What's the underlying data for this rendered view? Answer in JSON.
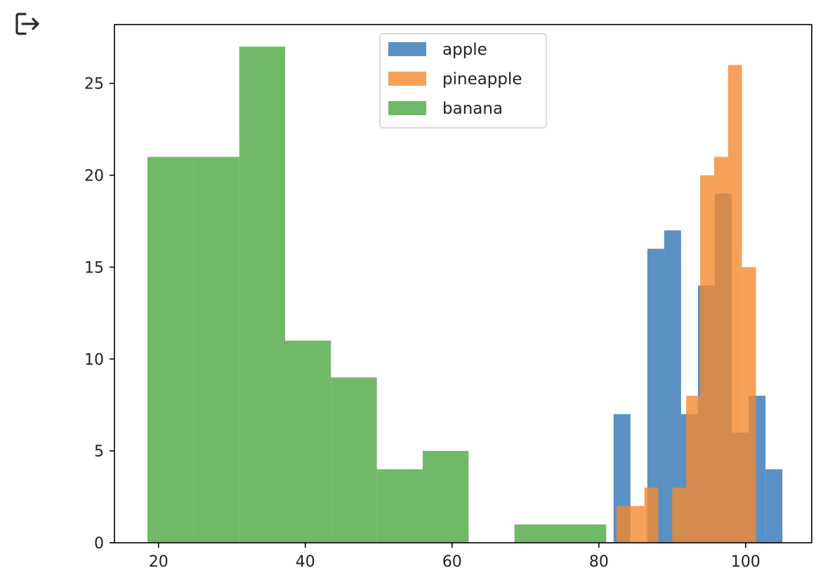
{
  "toolbar": {
    "exit_icon": "exit-to-app-icon"
  },
  "chart_data": {
    "type": "bar",
    "title": "",
    "xlabel": "",
    "ylabel": "",
    "xlim": [
      14,
      109
    ],
    "ylim": [
      0,
      28.2
    ],
    "xticks": [
      20,
      40,
      60,
      80,
      100
    ],
    "yticks": [
      0,
      5,
      10,
      15,
      20,
      25
    ],
    "grid": false,
    "legend_location": "upper center",
    "series": [
      {
        "name": "apple",
        "color": "#3274b5",
        "alpha": 0.8,
        "bin_edges": [
          82.0,
          84.3,
          86.6,
          88.9,
          91.2,
          93.5,
          95.8,
          98.1,
          100.4,
          102.7,
          105.0
        ],
        "counts": [
          7,
          0,
          16,
          17,
          7,
          14,
          19,
          6,
          8,
          4
        ]
      },
      {
        "name": "pineapple",
        "color": "#f28a30",
        "alpha": 0.8,
        "bin_edges": [
          82.4,
          84.3,
          86.2,
          88.1,
          90.0,
          91.9,
          93.8,
          95.7,
          97.6,
          99.5,
          101.4
        ],
        "counts": [
          2,
          2,
          3,
          0,
          3,
          8,
          20,
          21,
          26,
          15
        ]
      },
      {
        "name": "banana",
        "color": "#4da644",
        "alpha": 0.8,
        "bin_edges": [
          18.5,
          24.75,
          31.0,
          37.25,
          43.5,
          49.75,
          56.0,
          62.25,
          68.5,
          74.75,
          81.0
        ],
        "counts": [
          21,
          21,
          27,
          11,
          9,
          4,
          5,
          0,
          1,
          1
        ]
      }
    ]
  }
}
